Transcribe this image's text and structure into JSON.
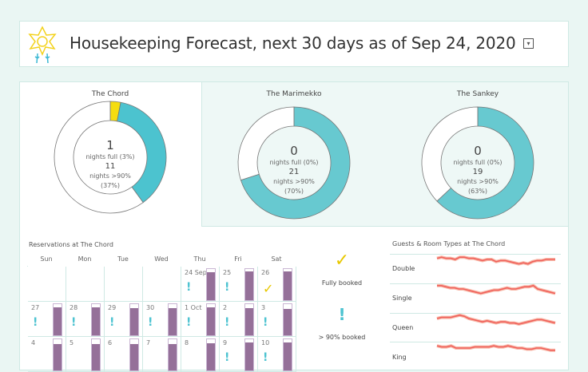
{
  "header": {
    "title": "Housekeeping Forecast, next 30 days as of Sep 24, 2020",
    "dropdown_icon": "dropdown-arrow-icon"
  },
  "colors": {
    "full": "#f5dd10",
    "over90": "#4cc3cf",
    "other90": "#67c9d0",
    "bar": "#957099",
    "spark": "#f0605a"
  },
  "hotels": [
    {
      "name": "The Chord",
      "full": "1",
      "full_label": "nights full (3%)",
      "over90": "11",
      "over90_label": "nights >90%",
      "over90_pct": "(37%)",
      "full_fraction": 0.03,
      "over90_fraction": 0.37
    },
    {
      "name": "The Marimekko",
      "full": "0",
      "full_label": "nights full (0%)",
      "over90": "21",
      "over90_label": "nights >90%",
      "over90_pct": "(70%)",
      "full_fraction": 0,
      "over90_fraction": 0.7
    },
    {
      "name": "The Sankey",
      "full": "0",
      "full_label": "nights full (0%)",
      "over90": "19",
      "over90_label": "nights >90%",
      "over90_pct": "(63%)",
      "full_fraction": 0,
      "over90_fraction": 0.63
    }
  ],
  "calendar": {
    "title": "Reservations at The Chord",
    "days": [
      "Sun",
      "Mon",
      "Tue",
      "Wed",
      "Thu",
      "Fri",
      "Sat"
    ],
    "cells": [
      {
        "col": 4,
        "row": 0,
        "label": "24 Sep",
        "occ": 0.91,
        "flag": "excl"
      },
      {
        "col": 5,
        "row": 0,
        "label": "25",
        "occ": 0.93,
        "flag": "excl"
      },
      {
        "col": 6,
        "row": 0,
        "label": "26",
        "occ": 0.93,
        "flag": "check"
      },
      {
        "col": 0,
        "row": 1,
        "label": "27",
        "occ": 0.9,
        "flag": "excl"
      },
      {
        "col": 1,
        "row": 1,
        "label": "28",
        "occ": 0.9,
        "flag": "excl"
      },
      {
        "col": 2,
        "row": 1,
        "label": "29",
        "occ": 0.88,
        "flag": "excl"
      },
      {
        "col": 3,
        "row": 1,
        "label": "30",
        "occ": 0.88,
        "flag": "excl"
      },
      {
        "col": 4,
        "row": 1,
        "label": "1 Oct",
        "occ": 0.9,
        "flag": "excl"
      },
      {
        "col": 5,
        "row": 1,
        "label": "2",
        "occ": 0.88,
        "flag": "excl"
      },
      {
        "col": 6,
        "row": 1,
        "label": "3",
        "occ": 0.85,
        "flag": "excl"
      },
      {
        "col": 0,
        "row": 2,
        "label": "4",
        "occ": 0.85,
        "flag": ""
      },
      {
        "col": 1,
        "row": 2,
        "label": "5",
        "occ": 0.85,
        "flag": ""
      },
      {
        "col": 2,
        "row": 2,
        "label": "6",
        "occ": 0.85,
        "flag": ""
      },
      {
        "col": 3,
        "row": 2,
        "label": "7",
        "occ": 0.85,
        "flag": ""
      },
      {
        "col": 4,
        "row": 2,
        "label": "8",
        "occ": 0.87,
        "flag": ""
      },
      {
        "col": 5,
        "row": 2,
        "label": "9",
        "occ": 0.9,
        "flag": "excl"
      },
      {
        "col": 6,
        "row": 2,
        "label": "10",
        "occ": 0.9,
        "flag": "excl"
      }
    ],
    "legend": {
      "full": "Fully booked",
      "over90": "> 90% booked"
    }
  },
  "guests": {
    "title": "Guests & Room Types at The Chord",
    "rows": [
      {
        "label": "Double",
        "values": [
          6,
          7,
          6,
          6,
          5,
          7,
          7,
          6,
          6,
          5,
          4,
          5,
          5,
          3,
          4,
          4,
          3,
          2,
          1,
          2,
          1,
          3,
          4,
          4,
          5,
          5,
          5
        ]
      },
      {
        "label": "Single",
        "values": [
          8,
          8,
          7,
          6,
          6,
          5,
          5,
          4,
          3,
          2,
          1,
          2,
          3,
          4,
          4,
          5,
          6,
          5,
          5,
          6,
          7,
          7,
          8,
          5,
          4,
          3,
          2,
          1
        ]
      },
      {
        "label": "Queen",
        "values": [
          5,
          6,
          6,
          6,
          7,
          8,
          7,
          5,
          4,
          3,
          2,
          3,
          2,
          1,
          2,
          2,
          1,
          1,
          0,
          1,
          2,
          3,
          4,
          4,
          3,
          2,
          1
        ]
      },
      {
        "label": "King",
        "values": [
          7,
          6,
          6,
          7,
          5,
          5,
          5,
          5,
          6,
          6,
          6,
          6,
          7,
          6,
          6,
          7,
          6,
          5,
          5,
          4,
          4,
          5,
          5,
          4,
          3,
          3
        ]
      }
    ]
  }
}
